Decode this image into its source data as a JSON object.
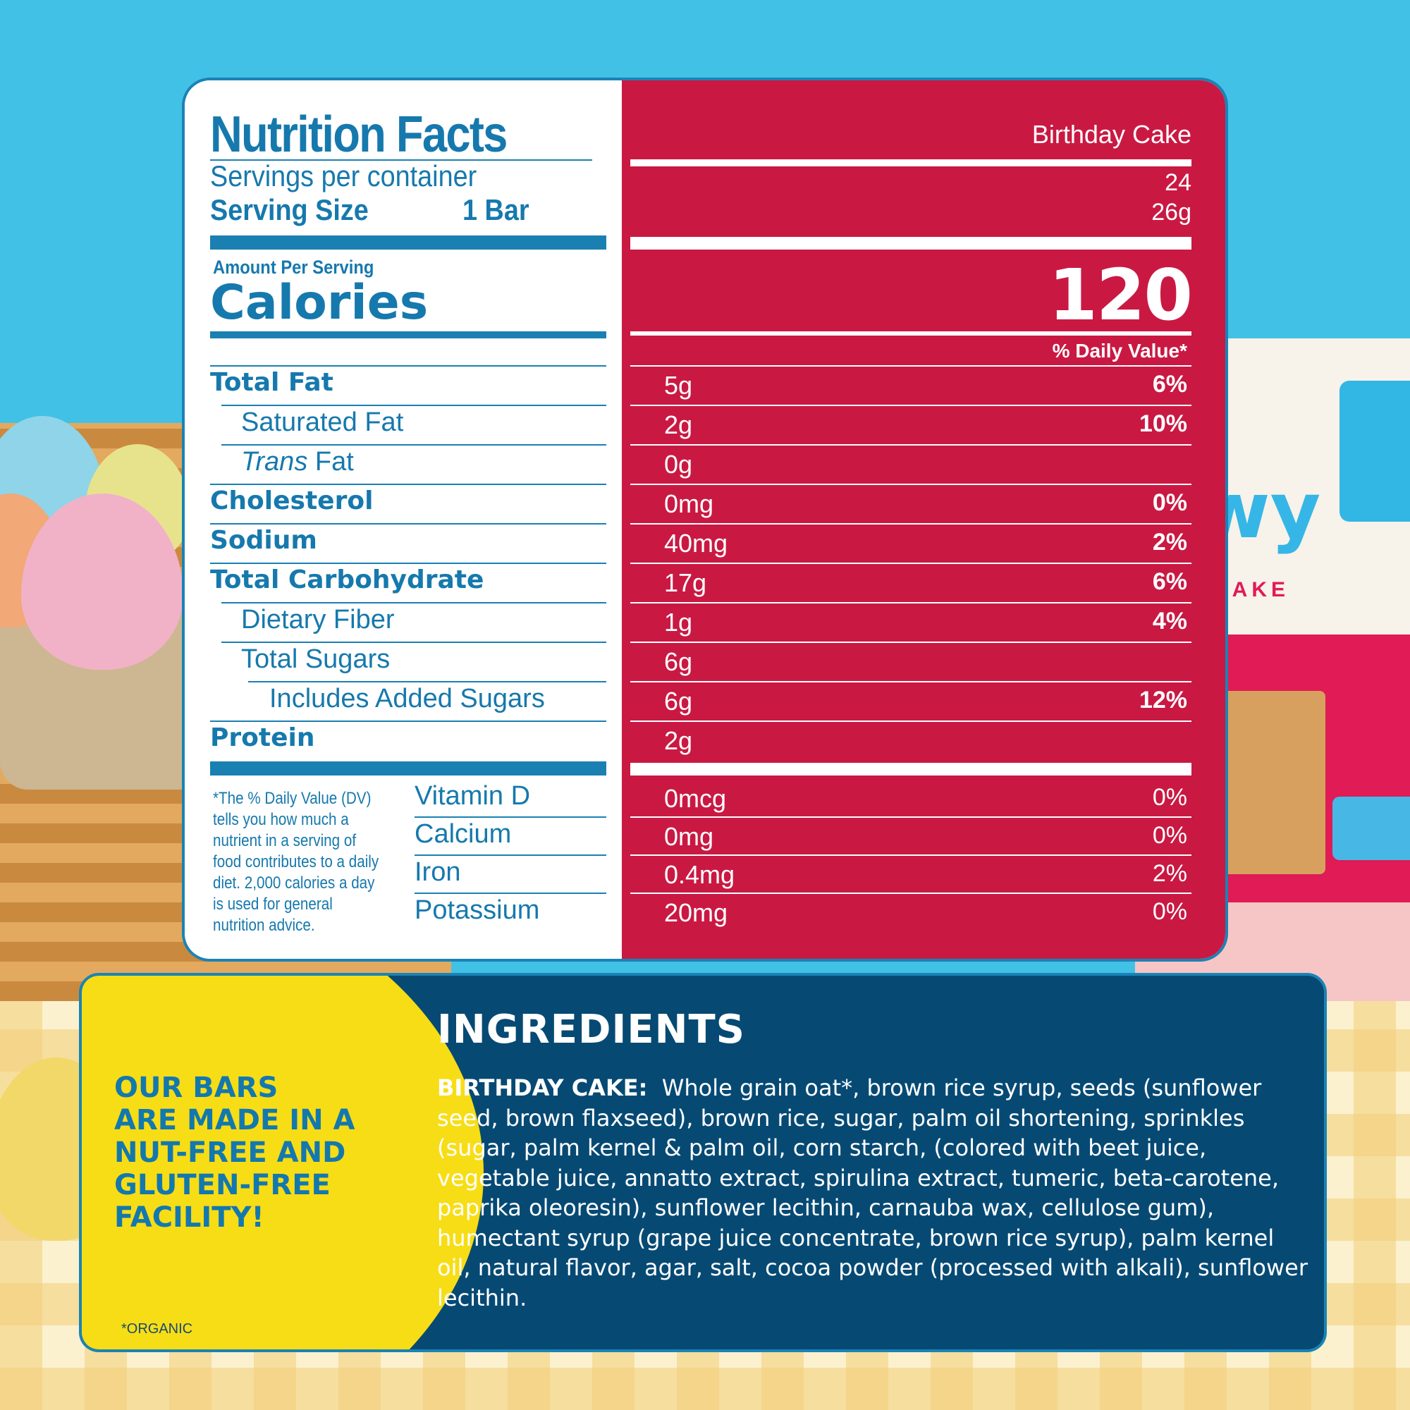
{
  "nutrition": {
    "title": "Nutrition Facts",
    "servings_label": "Servings per container",
    "serving_size_label": "Serving Size",
    "serving_size_value": "1 Bar",
    "amount_per_serving": "Amount Per Serving",
    "calories_label": "Calories",
    "flavor": "Birthday Cake",
    "servings_value": "24",
    "serving_size_grams": "26g",
    "calories_value": "120",
    "dv_header": "% Daily Value*",
    "rows": [
      {
        "label": "Total Fat",
        "amount": "5g",
        "dv": "6%"
      },
      {
        "label": "Saturated Fat",
        "amount": "2g",
        "dv": "10%"
      },
      {
        "label_italic": "Trans",
        "label": " Fat",
        "amount": "0g",
        "dv": ""
      },
      {
        "label": "Cholesterol",
        "amount": "0mg",
        "dv": "0%"
      },
      {
        "label": "Sodium",
        "amount": "40mg",
        "dv": "2%"
      },
      {
        "label": "Total Carbohydrate",
        "amount": "17g",
        "dv": "6%"
      },
      {
        "label": "Dietary Fiber",
        "amount": "1g",
        "dv": "4%"
      },
      {
        "label": "Total Sugars",
        "amount": "6g",
        "dv": ""
      },
      {
        "label": "Includes Added Sugars",
        "amount": "6g",
        "dv": "12%"
      },
      {
        "label": "Protein",
        "amount": "2g",
        "dv": ""
      }
    ],
    "dv_note": "*The % Daily Value (DV) tells you how much a nutrient in a serving of food contributes to a daily diet. 2,000 calories a day is used for general nutrition advice.",
    "vitamins": [
      {
        "label": "Vitamin D",
        "amount": "0mcg",
        "dv": "0%"
      },
      {
        "label": "Calcium",
        "amount": "0mg",
        "dv": "0%"
      },
      {
        "label": "Iron",
        "amount": "0.4mg",
        "dv": "2%"
      },
      {
        "label": "Potassium",
        "amount": "20mg",
        "dv": "0%"
      }
    ]
  },
  "ingredients": {
    "title": "INGREDIENTS",
    "flavor_label": "BIRTHDAY CAKE:",
    "text": "Whole grain oat*, brown rice syrup, seeds (sunflower seed, brown flaxseed), brown rice, sugar, palm oil shortening, sprinkles (sugar, palm kernel & palm oil, corn starch, (colored with beet juice, vegetable juice, annatto extract, spirulina extract, tumeric, beta-carotene, paprika oleoresin), sunflower lecithin, carnauba wax, cellulose gum), humectant syrup (grape juice concentrate, brown rice syrup), palm kernel oil, natural flavor, agar, salt, cocoa powder (processed with alkali), sunflower lecithin.",
    "facility_note_lines": [
      "OUR BARS",
      "ARE MADE IN A",
      "NUT-FREE AND",
      "GLUTEN-FREE",
      "FACILITY!"
    ],
    "organic_note": "*ORGANIC"
  },
  "colors": {
    "sky": "#41c1e6",
    "label_blue": "#1679ad",
    "panel_red": "#c91943",
    "panel_navy": "#064a74",
    "accent_yellow": "#f7dd16"
  }
}
